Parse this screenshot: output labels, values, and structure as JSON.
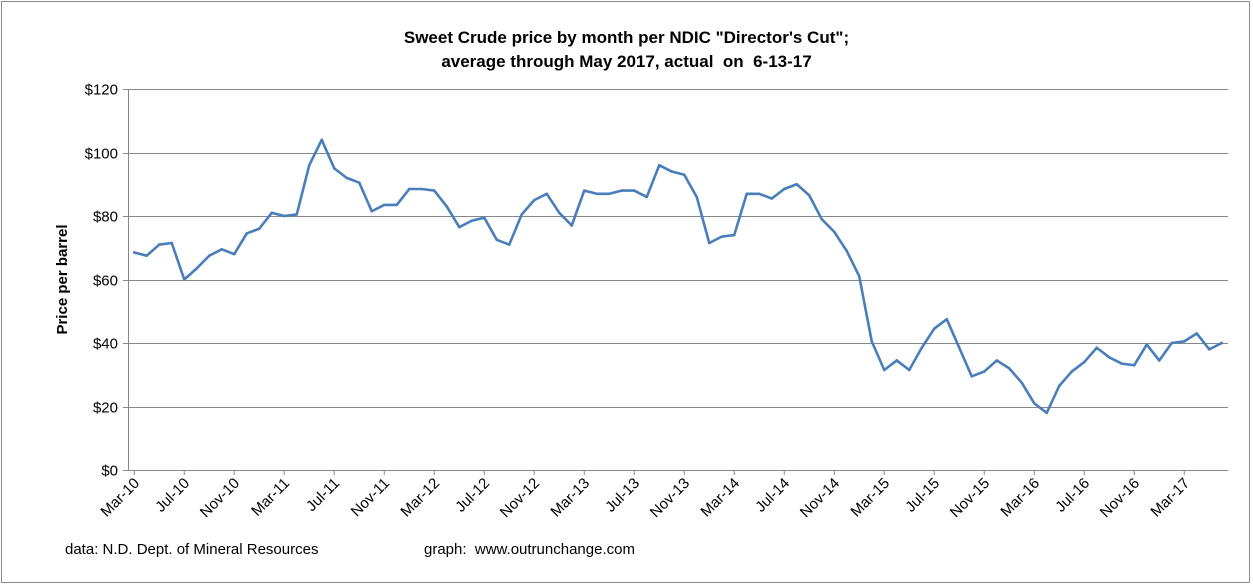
{
  "chart_data": {
    "type": "line",
    "title": [
      "Sweet Crude price by month per NDIC \"Director's Cut\";",
      "average through May 2017, actual  on  6-13-17"
    ],
    "xlabel": "",
    "ylabel": "Price per barrel",
    "ylim": [
      0,
      120
    ],
    "yticks": [
      0,
      20,
      40,
      60,
      80,
      100,
      120
    ],
    "ytick_labels": [
      "$0",
      "$20",
      "$40",
      "$60",
      "$80",
      "$100",
      "$120"
    ],
    "xtick_labels": [
      "Mar-10",
      "Jul-10",
      "Nov-10",
      "Mar-11",
      "Jul-11",
      "Nov-11",
      "Mar-12",
      "Jul-12",
      "Nov-12",
      "Mar-13",
      "Jul-13",
      "Nov-13",
      "Mar-14",
      "Jul-14",
      "Nov-14",
      "Mar-15",
      "Jul-15",
      "Nov-15",
      "Mar-16",
      "Jul-16",
      "Nov-16",
      "Mar-17"
    ],
    "grid": true,
    "legend": "none",
    "series": [
      {
        "name": "Sweet Crude price",
        "color": "#4a7ebb",
        "start": "Mar-10",
        "end": "Jun-17",
        "values": [
          68.5,
          67.5,
          71,
          71.5,
          60,
          63.5,
          67.5,
          69.5,
          68,
          74.5,
          76,
          81,
          80,
          80.5,
          96,
          104,
          95,
          92,
          90.5,
          81.5,
          83.5,
          83.5,
          88.5,
          88.5,
          88,
          83,
          76.5,
          78.5,
          79.5,
          72.5,
          71,
          80.5,
          85,
          87,
          81,
          77,
          88,
          87,
          87,
          88,
          88,
          86,
          96,
          94,
          93,
          86,
          71.5,
          73.5,
          74,
          87,
          87,
          85.5,
          88.5,
          90,
          86.5,
          79,
          75,
          69,
          61,
          40.5,
          31.5,
          34.5,
          31.5,
          38.5,
          44.5,
          47.5,
          38.5,
          29.5,
          31,
          34.5,
          32,
          27.5,
          21,
          18,
          26.5,
          31,
          34,
          38.5,
          35.5,
          33.5,
          33,
          39.5,
          34.5,
          40,
          40.5,
          43,
          38,
          40
        ]
      }
    ]
  },
  "footer": {
    "source": "data: N.D. Dept. of Mineral Resources",
    "credit": "graph:  www.outrunchange.com"
  }
}
